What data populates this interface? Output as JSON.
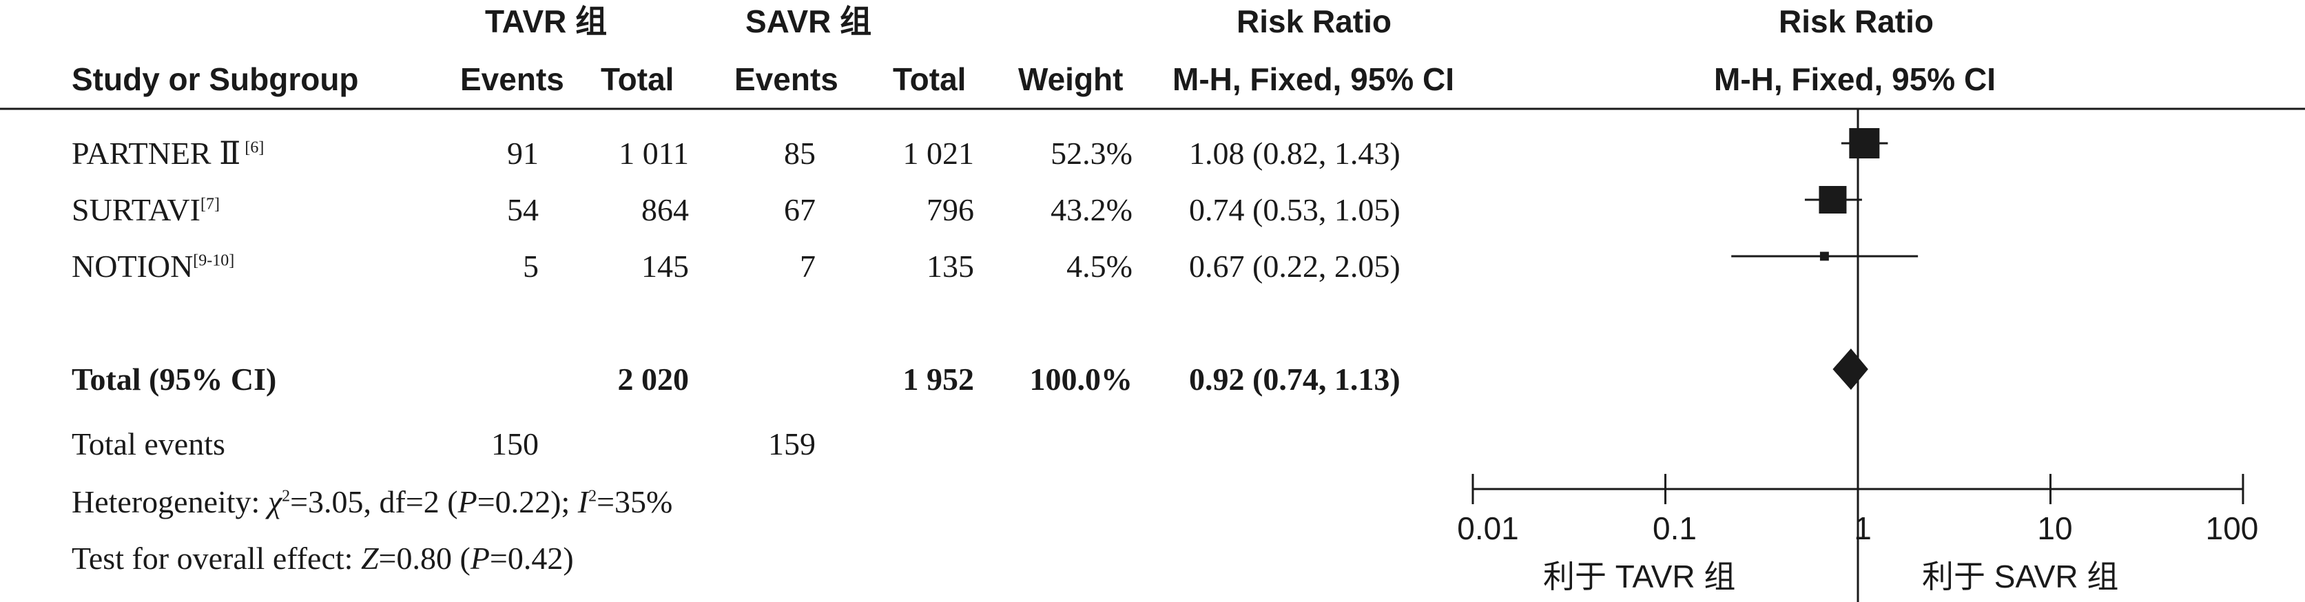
{
  "header": {
    "group1": "TAVR 组",
    "group2": "SAVR 组",
    "rr_label": "Risk Ratio",
    "rr_plot_label": "Risk Ratio",
    "col_study": "Study or Subgroup",
    "col_events1": "Events",
    "col_total1": "Total",
    "col_events2": "Events",
    "col_total2": "Total",
    "col_weight": "Weight",
    "col_method": "M-H, Fixed, 95% CI",
    "plot_method": "M-H, Fixed, 95% CI"
  },
  "studies": [
    {
      "name": "PARTNER Ⅱ",
      "ref": " [6]",
      "events1": "91",
      "total1": "1 011",
      "events2": "85",
      "total2": "1 021",
      "weight": "52.3%",
      "ci_text": "1.08 (0.82, 1.43)"
    },
    {
      "name": "SURTAVI",
      "ref": "[7]",
      "events1": "54",
      "total1": "864",
      "events2": "67",
      "total2": "796",
      "weight": "43.2%",
      "ci_text": "0.74 (0.53, 1.05)"
    },
    {
      "name": "NOTION",
      "ref": "[9-10]",
      "events1": "5",
      "total1": "145",
      "events2": "7",
      "total2": "135",
      "weight": "4.5%",
      "ci_text": "0.67 (0.22, 2.05)"
    }
  ],
  "total": {
    "label": "Total (95% CI)",
    "total1": "2 020",
    "total2": "1 952",
    "weight": "100.0%",
    "ci_text": "0.92 (0.74, 1.13)"
  },
  "total_events": {
    "label": "Total events",
    "events1": "150",
    "events2": "159"
  },
  "heterogeneity": {
    "prefix": "Heterogeneity: ",
    "chi_symbol": "χ",
    "chi_value": "=3.05, df=2 (",
    "p_symbol": "P",
    "p_value": "=0.22); ",
    "i_symbol": "I",
    "i_value": "=35%"
  },
  "overall_effect": {
    "prefix": "Test for overall effect: ",
    "z_symbol": "Z",
    "z_value": "=0.80 (",
    "p_symbol": "P",
    "p_value": "=0.42)"
  },
  "axis": {
    "ticks": [
      "0.01",
      "0.1",
      "1",
      "10",
      "100"
    ],
    "favours_left": "利于 TAVR 组",
    "favours_right": "利于 SAVR 组"
  },
  "chart_data": {
    "type": "forest",
    "scale": "log",
    "xlim": [
      0.01,
      100
    ],
    "xticks": [
      0.01,
      0.1,
      1,
      10,
      100
    ],
    "null_line": 1,
    "studies": [
      {
        "name": "PARTNER Ⅱ",
        "rr": 1.08,
        "lo": 0.82,
        "hi": 1.43,
        "weight": 52.3
      },
      {
        "name": "SURTAVI",
        "rr": 0.74,
        "lo": 0.53,
        "hi": 1.05,
        "weight": 43.2
      },
      {
        "name": "NOTION",
        "rr": 0.67,
        "lo": 0.22,
        "hi": 2.05,
        "weight": 4.5
      }
    ],
    "pooled": {
      "rr": 0.92,
      "lo": 0.74,
      "hi": 1.13
    },
    "colors": {
      "ink": "#1a1a1a"
    }
  }
}
